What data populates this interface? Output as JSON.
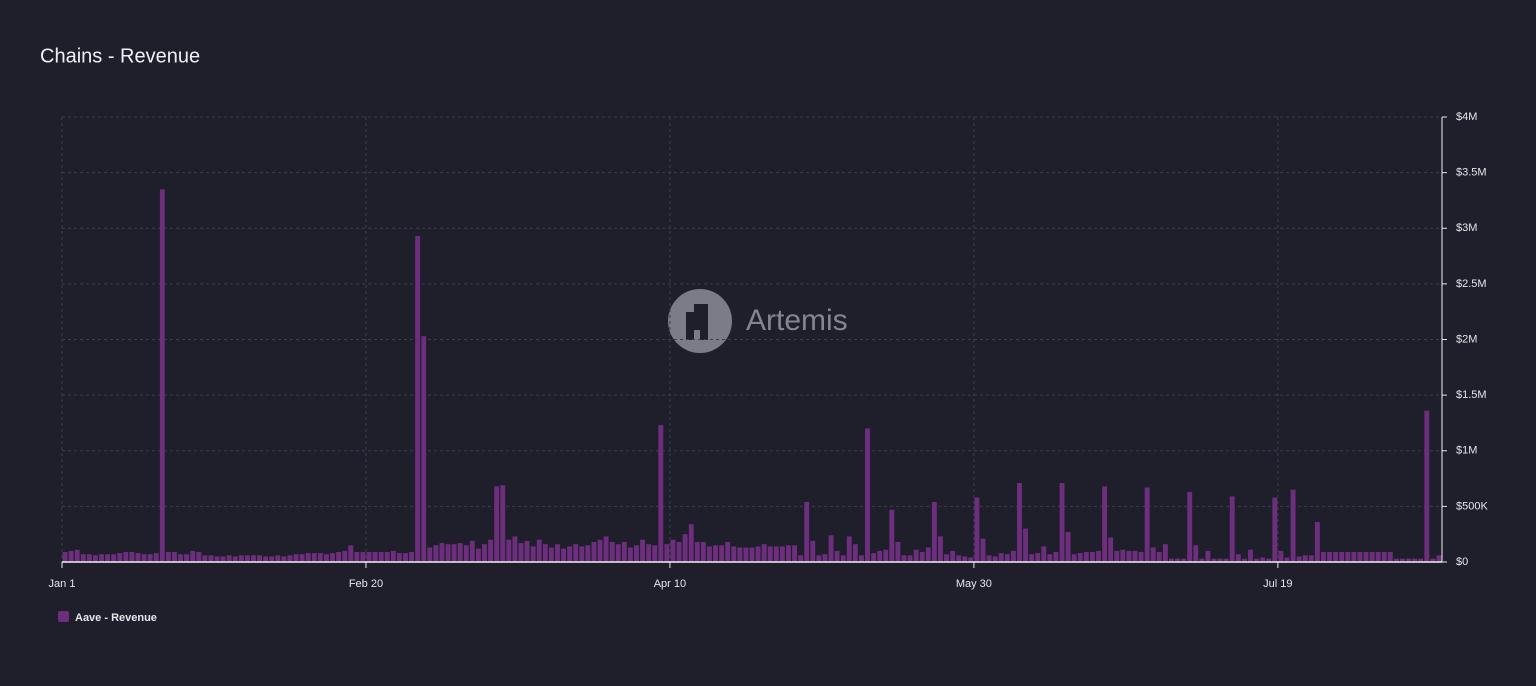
{
  "chart_data": {
    "type": "bar",
    "title": "Chains - Revenue",
    "watermark": "Artemis",
    "series": [
      {
        "name": "Aave - Revenue",
        "color": "#6e2e7e",
        "values": [
          90000,
          100000,
          110000,
          70000,
          70000,
          60000,
          70000,
          70000,
          70000,
          80000,
          90000,
          90000,
          80000,
          70000,
          70000,
          80000,
          3350000,
          90000,
          90000,
          70000,
          70000,
          100000,
          90000,
          60000,
          60000,
          50000,
          50000,
          60000,
          50000,
          60000,
          60000,
          60000,
          60000,
          50000,
          50000,
          60000,
          50000,
          60000,
          70000,
          70000,
          80000,
          80000,
          80000,
          70000,
          80000,
          90000,
          100000,
          150000,
          90000,
          90000,
          90000,
          90000,
          90000,
          90000,
          100000,
          80000,
          80000,
          90000,
          2930000,
          2030000,
          130000,
          150000,
          170000,
          160000,
          160000,
          170000,
          150000,
          190000,
          120000,
          160000,
          200000,
          680000,
          690000,
          200000,
          230000,
          170000,
          190000,
          140000,
          200000,
          160000,
          130000,
          160000,
          120000,
          140000,
          160000,
          140000,
          150000,
          180000,
          200000,
          230000,
          180000,
          160000,
          180000,
          130000,
          150000,
          200000,
          160000,
          150000,
          1230000,
          160000,
          200000,
          180000,
          250000,
          340000,
          180000,
          180000,
          140000,
          150000,
          150000,
          180000,
          140000,
          130000,
          130000,
          130000,
          140000,
          160000,
          140000,
          140000,
          140000,
          150000,
          150000,
          60000,
          540000,
          190000,
          60000,
          70000,
          240000,
          100000,
          60000,
          230000,
          160000,
          60000,
          1200000,
          80000,
          100000,
          110000,
          470000,
          180000,
          60000,
          60000,
          110000,
          90000,
          130000,
          540000,
          230000,
          70000,
          100000,
          60000,
          50000,
          40000,
          580000,
          210000,
          60000,
          50000,
          80000,
          70000,
          100000,
          710000,
          300000,
          70000,
          80000,
          140000,
          70000,
          90000,
          710000,
          270000,
          70000,
          80000,
          90000,
          90000,
          100000,
          680000,
          220000,
          100000,
          110000,
          100000,
          100000,
          90000,
          670000,
          130000,
          90000,
          160000,
          30000,
          30000,
          30000,
          630000,
          150000,
          30000,
          100000,
          30000,
          30000,
          30000,
          590000,
          70000,
          30000,
          110000,
          30000,
          40000,
          30000,
          580000,
          100000,
          40000,
          650000,
          50000,
          60000,
          60000,
          360000,
          90000,
          90000,
          90000,
          90000,
          90000,
          90000,
          90000,
          90000,
          90000,
          90000,
          90000,
          90000,
          30000,
          30000,
          30000,
          30000,
          30000,
          1360000,
          30000,
          60000
        ]
      }
    ],
    "categories": [
      "Jan 1",
      null,
      null,
      null,
      null,
      null,
      null,
      null,
      null,
      null,
      null,
      null,
      null,
      null,
      null,
      null,
      null,
      null,
      null,
      null,
      null,
      null,
      null,
      null,
      null,
      null,
      null,
      null,
      null,
      null,
      null,
      null,
      null,
      null,
      null,
      null,
      null,
      null,
      null,
      null,
      null,
      null,
      null,
      null,
      null,
      null,
      null,
      null,
      null,
      null,
      "Feb 20",
      null,
      null,
      null,
      null,
      null,
      null,
      null,
      null,
      null,
      null,
      null,
      null,
      null,
      null,
      null,
      null,
      null,
      null,
      null,
      null,
      null,
      null,
      null,
      null,
      null,
      null,
      null,
      null,
      null,
      null,
      null,
      null,
      null,
      null,
      null,
      null,
      null,
      null,
      null,
      null,
      null,
      null,
      null,
      null,
      null,
      null,
      null,
      null,
      null,
      "Apr 10",
      null,
      null,
      null,
      null,
      null,
      null,
      null,
      null,
      null,
      null,
      null,
      null,
      null,
      null,
      null,
      null,
      null,
      null,
      null,
      null,
      null,
      null,
      null,
      null,
      null,
      null,
      null,
      null,
      null,
      null,
      null,
      null,
      null,
      null,
      null,
      null,
      null,
      null,
      null,
      null,
      null,
      null,
      null,
      null,
      null,
      null,
      null,
      null,
      null,
      "May 30",
      null,
      null,
      null,
      null,
      null,
      null,
      null,
      null,
      null,
      null,
      null,
      null,
      null,
      null,
      null,
      null,
      null,
      null,
      null,
      null,
      null,
      null,
      null,
      null,
      null,
      null,
      null,
      null,
      null,
      null,
      null,
      null,
      null,
      null,
      null,
      null,
      null,
      null,
      null,
      null,
      null,
      null,
      null,
      null,
      null,
      null,
      null,
      null,
      null,
      "Jul 19",
      null,
      null,
      null,
      null,
      null,
      null,
      null,
      null,
      null,
      null,
      null,
      null,
      null,
      null,
      null,
      null,
      null,
      null,
      null,
      null,
      null,
      null,
      null,
      null,
      null,
      null
    ],
    "ylim": [
      0,
      4000000
    ],
    "yticks": [
      {
        "value": 0,
        "label": "$0"
      },
      {
        "value": 500000,
        "label": "$500K"
      },
      {
        "value": 1000000,
        "label": "$1M"
      },
      {
        "value": 1500000,
        "label": "$1.5M"
      },
      {
        "value": 2000000,
        "label": "$2M"
      },
      {
        "value": 2500000,
        "label": "$2.5M"
      },
      {
        "value": 3000000,
        "label": "$3M"
      },
      {
        "value": 3500000,
        "label": "$3.5M"
      },
      {
        "value": 4000000,
        "label": "$4M"
      }
    ],
    "grid": true,
    "legend": "bottom-left"
  }
}
